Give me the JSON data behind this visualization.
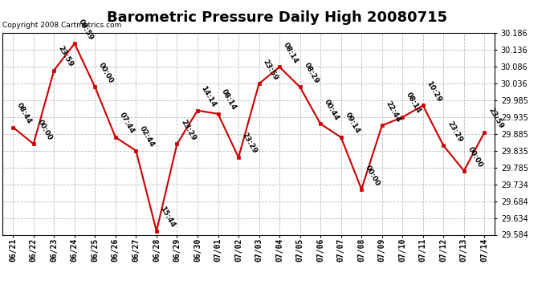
{
  "title": "Barometric Pressure Daily High 20080715",
  "copyright": "Copyright 2008 Cartmetrics.com",
  "x_labels": [
    "06/21",
    "06/22",
    "06/23",
    "06/24",
    "06/25",
    "06/26",
    "06/27",
    "06/28",
    "06/29",
    "06/30",
    "07/01",
    "07/02",
    "07/03",
    "07/04",
    "07/05",
    "07/06",
    "07/07",
    "07/08",
    "07/09",
    "07/10",
    "07/11",
    "07/12",
    "07/13",
    "07/14"
  ],
  "y_values": [
    29.905,
    29.855,
    30.075,
    30.155,
    30.025,
    29.875,
    29.835,
    29.595,
    29.855,
    29.955,
    29.945,
    29.815,
    30.035,
    30.085,
    30.025,
    29.915,
    29.875,
    29.72,
    29.91,
    29.935,
    29.97,
    29.85,
    29.775,
    29.89
  ],
  "point_labels": [
    "08:44",
    "00:00",
    "23:59",
    "08:59",
    "00:00",
    "07:44",
    "02:44",
    "15:44",
    "23:29",
    "14:14",
    "08:14",
    "23:29",
    "23:59",
    "08:14",
    "08:29",
    "00:44",
    "09:14",
    "00:00",
    "22:44",
    "08:14",
    "10:29",
    "23:29",
    "00:00",
    "23:59"
  ],
  "ylim_min": 29.584,
  "ylim_max": 30.186,
  "yticks": [
    29.584,
    29.634,
    29.684,
    29.734,
    29.785,
    29.835,
    29.885,
    29.935,
    29.985,
    30.036,
    30.086,
    30.136,
    30.186
  ],
  "line_color": "#cc0000",
  "marker_color": "#cc0000",
  "bg_color": "#ffffff",
  "plot_bg_color": "#ffffff",
  "grid_color": "#bbbbbb",
  "title_fontsize": 13,
  "tick_fontsize": 7,
  "point_label_fontsize": 6.5
}
